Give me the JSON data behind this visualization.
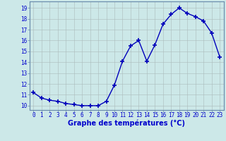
{
  "x": [
    0,
    1,
    2,
    3,
    4,
    5,
    6,
    7,
    8,
    9,
    10,
    11,
    12,
    13,
    14,
    15,
    16,
    17,
    18,
    19,
    20,
    21,
    22,
    23
  ],
  "y": [
    11.2,
    10.7,
    10.5,
    10.4,
    10.2,
    10.1,
    10.0,
    10.0,
    10.0,
    10.4,
    11.9,
    14.1,
    15.5,
    16.0,
    14.1,
    15.6,
    17.5,
    18.4,
    19.0,
    18.5,
    18.2,
    17.8,
    16.7,
    14.5
  ],
  "line_color": "#0000bb",
  "marker": "+",
  "markersize": 4,
  "markeredgewidth": 1.2,
  "linewidth": 1.0,
  "xlabel": "Graphe des températures (°C)",
  "xlabel_fontsize": 7,
  "xlabel_color": "#0000cc",
  "xlabel_fontweight": "bold",
  "xtick_labels": [
    "0",
    "1",
    "2",
    "3",
    "4",
    "5",
    "6",
    "7",
    "8",
    "9",
    "10",
    "11",
    "12",
    "13",
    "14",
    "15",
    "16",
    "17",
    "18",
    "19",
    "20",
    "21",
    "22",
    "23"
  ],
  "ytick_vals": [
    10,
    11,
    12,
    13,
    14,
    15,
    16,
    17,
    18,
    19
  ],
  "ytick_labels": [
    "10",
    "11",
    "12",
    "13",
    "14",
    "15",
    "16",
    "17",
    "18",
    "19"
  ],
  "ylim": [
    9.6,
    19.6
  ],
  "xlim": [
    -0.5,
    23.5
  ],
  "bg_color": "#cce8e8",
  "grid_color": "#aabbbb",
  "tick_color": "#0000cc",
  "tick_fontsize": 5.5,
  "border_color": "#6688aa"
}
